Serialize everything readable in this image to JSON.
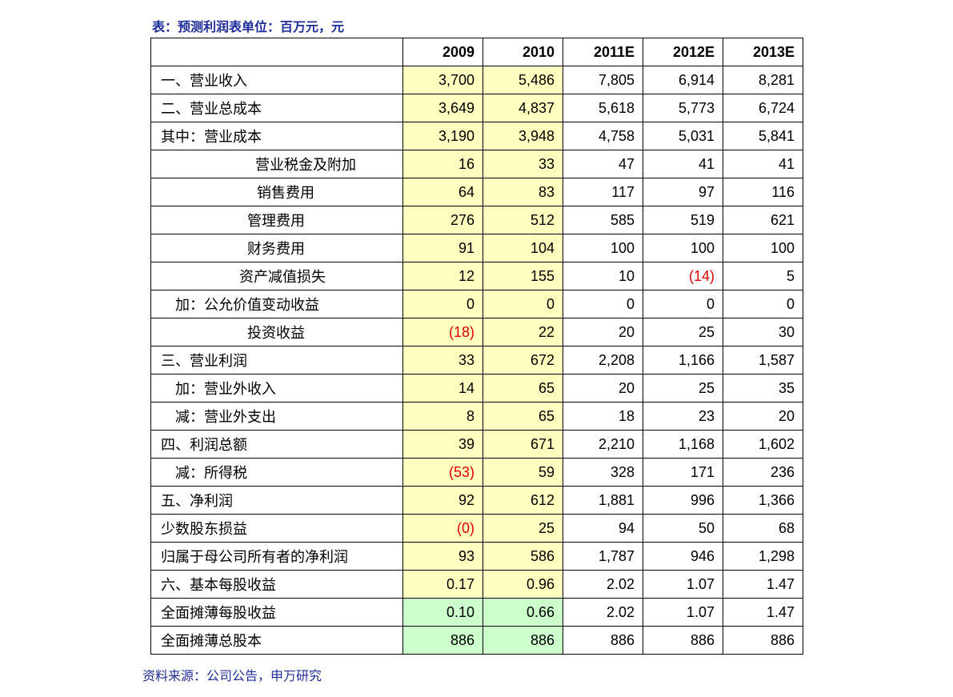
{
  "title": "表：预测利润表单位：百万元，元",
  "table": {
    "header": [
      "",
      "2009",
      "2010",
      "2011E",
      "2012E",
      "2013E"
    ],
    "rows": [
      [
        "一、营业收入",
        "3,700",
        "5,486",
        "7,805",
        "6,914",
        "8,281"
      ],
      [
        "二、营业总成本",
        "3,649",
        "4,837",
        "5,618",
        "5,773",
        "6,724"
      ],
      [
        "其中：营业成本",
        "3,190",
        "3,948",
        "4,758",
        "5,031",
        "5,841"
      ],
      [
        "营业税金及附加",
        "16",
        "33",
        "47",
        "41",
        "41"
      ],
      [
        "销售费用",
        "64",
        "83",
        "117",
        "97",
        "116"
      ],
      [
        "管理费用",
        "276",
        "512",
        "585",
        "519",
        "621"
      ],
      [
        "财务费用",
        "91",
        "104",
        "100",
        "100",
        "100"
      ],
      [
        "资产减值损失",
        "12",
        "155",
        "10",
        "(14)",
        "5"
      ],
      [
        "加：公允价值变动收益",
        "0",
        "0",
        "0",
        "0",
        "0"
      ],
      [
        "投资收益",
        "(18)",
        "22",
        "20",
        "25",
        "30"
      ],
      [
        "三、营业利润",
        "33",
        "672",
        "2,208",
        "1,166",
        "1,587"
      ],
      [
        "加：营业外收入",
        "14",
        "65",
        "20",
        "25",
        "35"
      ],
      [
        "减：营业外支出",
        "8",
        "65",
        "18",
        "23",
        "20"
      ],
      [
        "四、利润总额",
        "39",
        "671",
        "2,210",
        "1,168",
        "1,602"
      ],
      [
        "减：所得税",
        "(53)",
        "59",
        "328",
        "171",
        "236"
      ],
      [
        "五、净利润",
        "92",
        "612",
        "1,881",
        "996",
        "1,366"
      ],
      [
        "少数股东损益",
        "(0)",
        "25",
        "94",
        "50",
        "68"
      ],
      [
        "归属于母公司所有者的净利润",
        "93",
        "586",
        "1,787",
        "946",
        "1,298"
      ],
      [
        "六、基本每股收益",
        "0.17",
        "0.96",
        "2.02",
        "1.07",
        "1.47"
      ],
      [
        "全面摊薄每股收益",
        "0.10",
        "0.66",
        "2.02",
        "1.07",
        "1.47"
      ],
      [
        "全面摊薄总股本",
        "886",
        "886",
        "886",
        "886",
        "886"
      ]
    ]
  },
  "source": "资料来源：公司公告，申万研究"
}
